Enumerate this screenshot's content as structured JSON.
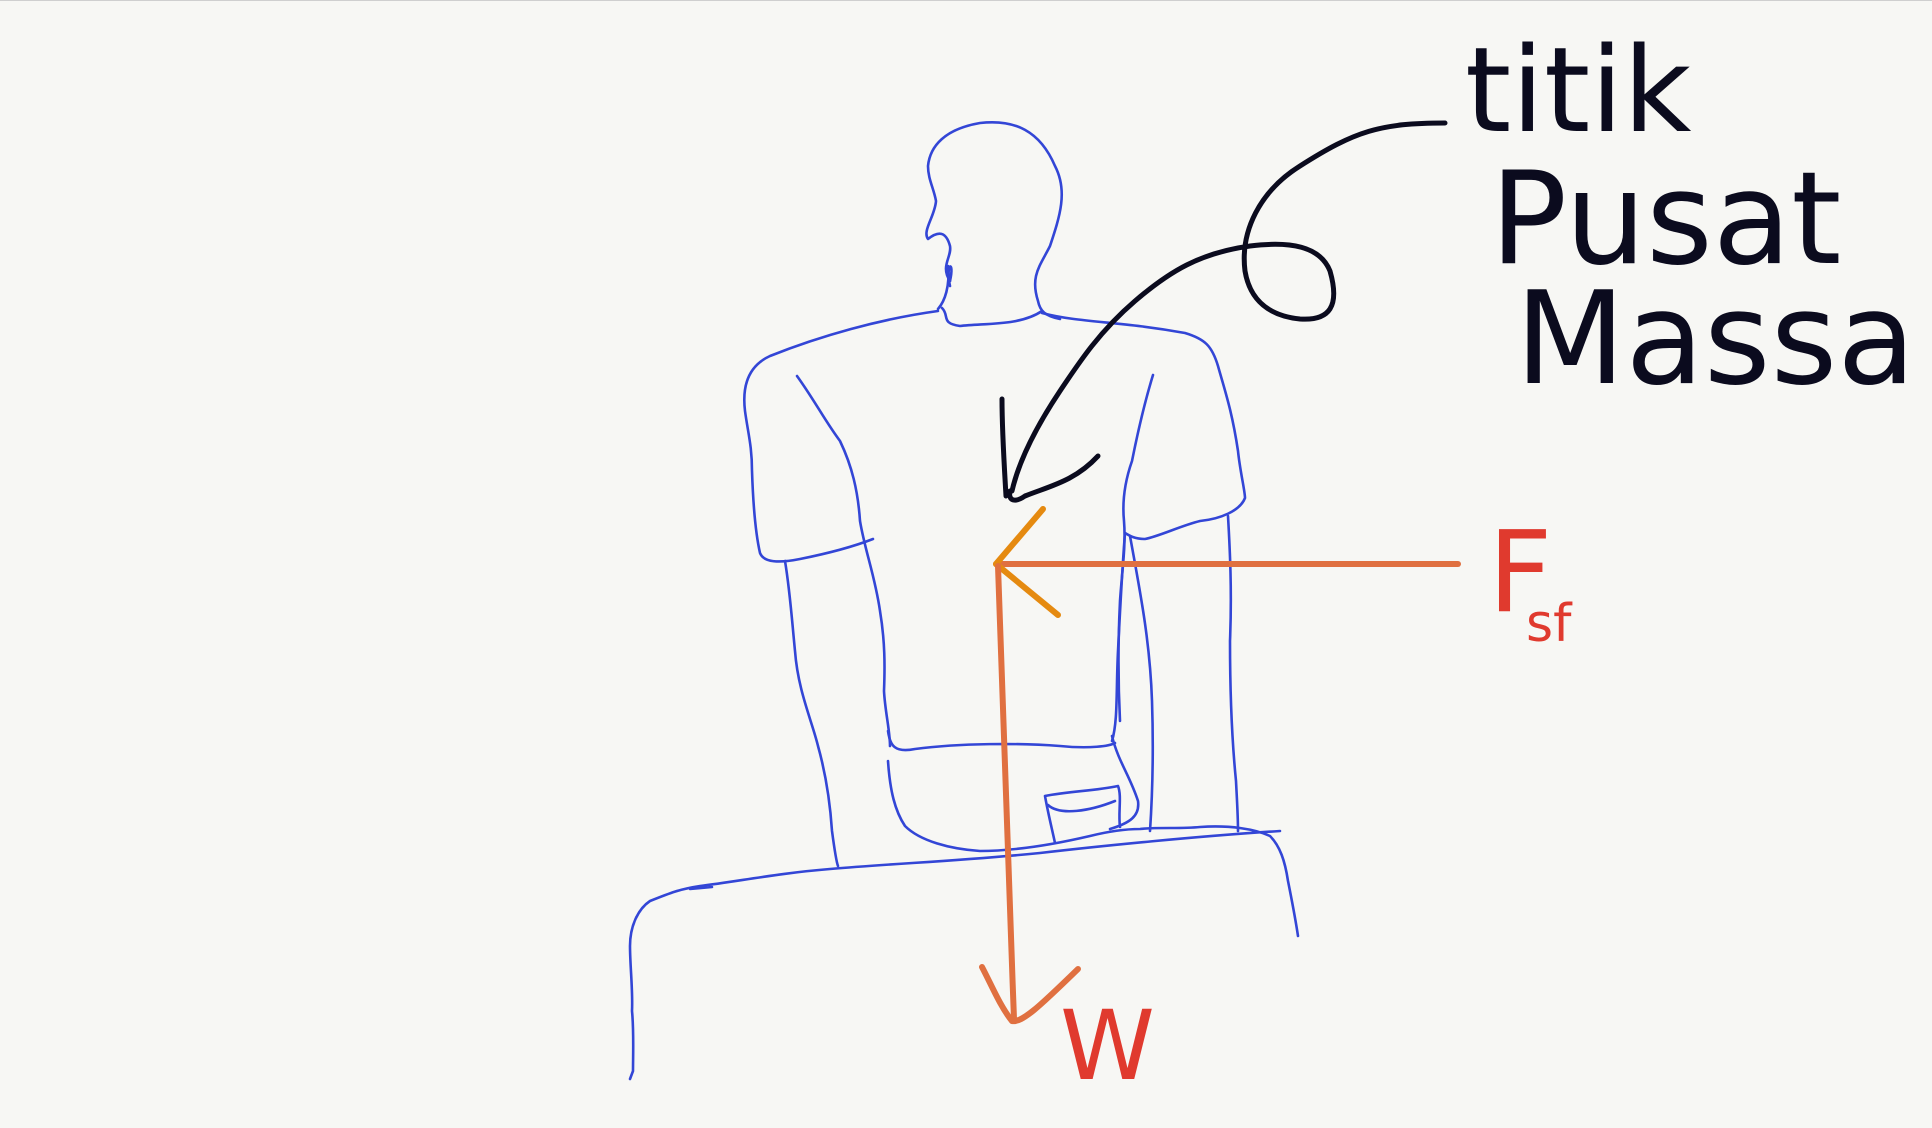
{
  "label_center_of_mass": {
    "line1": "titik",
    "line2": "Pusat",
    "line3": "Massa"
  },
  "force_friction": {
    "symbol": "F",
    "subscript": "sf"
  },
  "force_weight": {
    "symbol": "W"
  },
  "colors": {
    "background": "#f7f7f4",
    "figure_outline": "#3346d6",
    "annotation_ink": "#0b0b1e",
    "force_arrow": "#e07040",
    "arrowhead_friction": "#e58a10",
    "force_label": "#e03a2e"
  }
}
